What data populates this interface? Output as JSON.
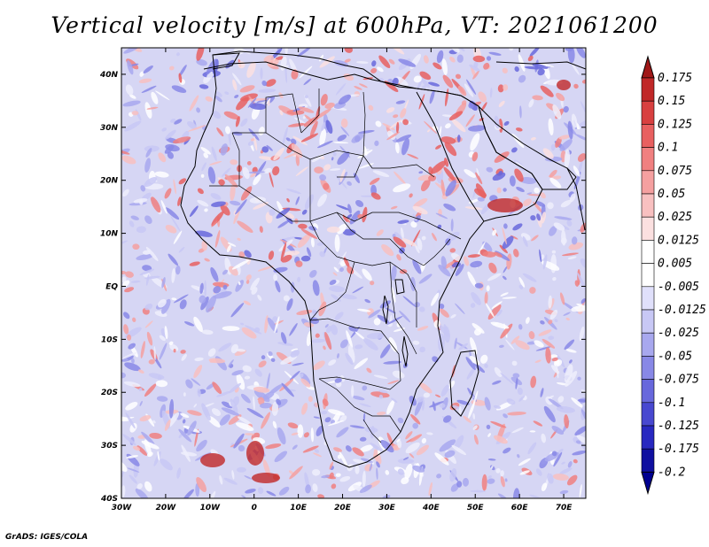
{
  "title": "Vertical velocity [m/s] at 600hPa, VT: 2021061200",
  "credit": "GrADS: IGES/COLA",
  "map": {
    "lon_range": [
      -30,
      75
    ],
    "lat_range": [
      -40,
      45
    ],
    "lon_ticks": [
      "30W",
      "20W",
      "10W",
      "0",
      "10E",
      "20E",
      "30E",
      "40E",
      "50E",
      "60E",
      "70E"
    ],
    "lat_ticks": [
      "40S",
      "30S",
      "20S",
      "10S",
      "EQ",
      "10N",
      "20N",
      "30N",
      "40N"
    ]
  },
  "colorbar": {
    "levels": [
      "0.175",
      "0.15",
      "0.125",
      "0.1",
      "0.075",
      "0.05",
      "0.025",
      "0.0125",
      "0.005",
      "-0.005",
      "-0.0125",
      "-0.025",
      "-0.05",
      "-0.075",
      "-0.1",
      "-0.125",
      "-0.175",
      "-0.2"
    ],
    "colors": [
      "#a01818",
      "#c02828",
      "#d84040",
      "#e86060",
      "#f08080",
      "#f5a0a0",
      "#f8c0c0",
      "#fbe0e0",
      "#ffffff",
      "#ffffff",
      "#e0e0fb",
      "#c8c8f5",
      "#a8a8ee",
      "#8888e6",
      "#6868dc",
      "#4848d0",
      "#2828c0",
      "#1010a0",
      "#000090"
    ]
  }
}
